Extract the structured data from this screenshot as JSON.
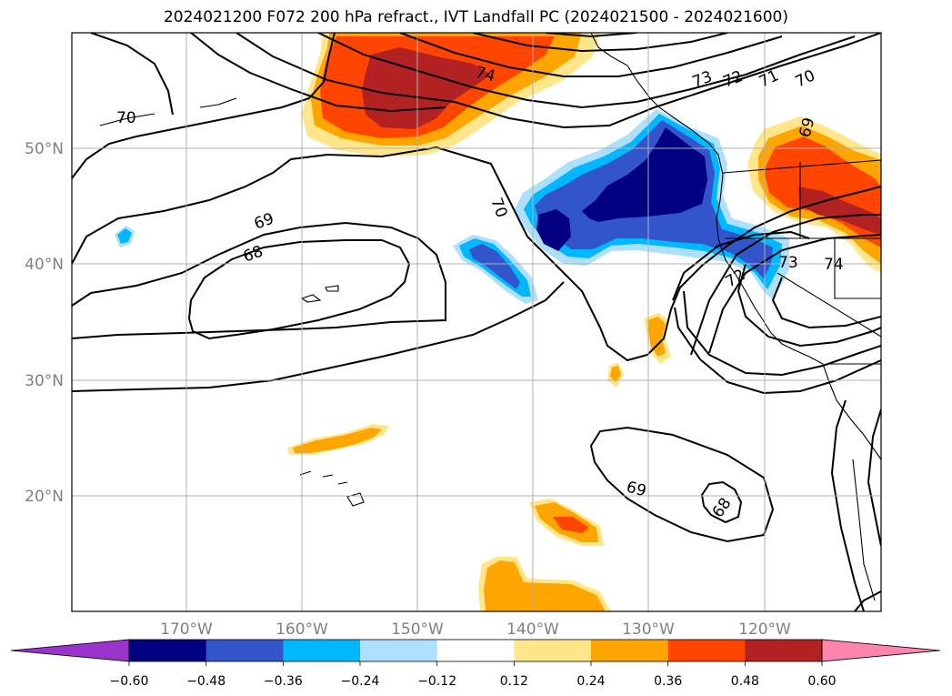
{
  "title": "2024021200 F072 200 hPa refract., IVT Landfall PC (2024021500 - 2024021600)",
  "map": {
    "lon_labels": [
      "170°W",
      "160°W",
      "150°W",
      "140°W",
      "130°W",
      "120°W"
    ],
    "lat_labels": [
      "50°N",
      "40°N",
      "30°N",
      "20°N"
    ],
    "contour_labels": [
      "70",
      "74",
      "73",
      "72",
      "71",
      "70",
      "69",
      "69",
      "68",
      "70",
      "69",
      "68",
      "73",
      "74",
      "72"
    ]
  },
  "colorbar": {
    "ticks": [
      "−0.60",
      "−0.48",
      "−0.36",
      "−0.24",
      "−0.12",
      "0.12",
      "0.24",
      "0.36",
      "0.48",
      "0.60"
    ],
    "colors": [
      "#9933cc",
      "#000080",
      "#3355cc",
      "#00b8ff",
      "#ade0fa",
      "#ffffff",
      "#ffe68a",
      "#ffa500",
      "#ff4500",
      "#b22222",
      "#ff85ad"
    ]
  }
}
